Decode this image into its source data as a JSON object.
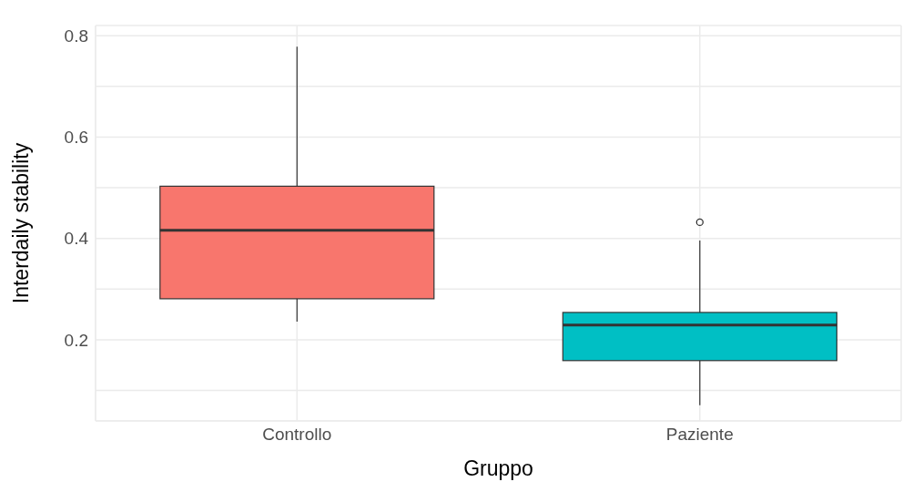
{
  "chart_data": {
    "type": "box",
    "xlabel": "Gruppo",
    "ylabel": "Interdaily stability",
    "categories": [
      "Controllo",
      "Paziente"
    ],
    "colors": [
      "#f8766d",
      "#00bfc4"
    ],
    "boxes": [
      {
        "low": 0.236,
        "q1": 0.281,
        "median": 0.416,
        "q3": 0.503,
        "high": 0.778
      },
      {
        "low": 0.071,
        "q1": 0.159,
        "median": 0.229,
        "q3": 0.254,
        "high": 0.396,
        "outliers": [
          0.432
        ]
      }
    ],
    "ylim": [
      0.04,
      0.82
    ],
    "yticks": [
      {
        "value": 0.1,
        "label": null
      },
      0.2,
      {
        "value": 0.3,
        "label": null
      },
      0.4,
      {
        "value": 0.5,
        "label": null
      },
      0.6,
      {
        "value": 0.7,
        "label": null
      },
      0.8
    ],
    "grid": true
  }
}
